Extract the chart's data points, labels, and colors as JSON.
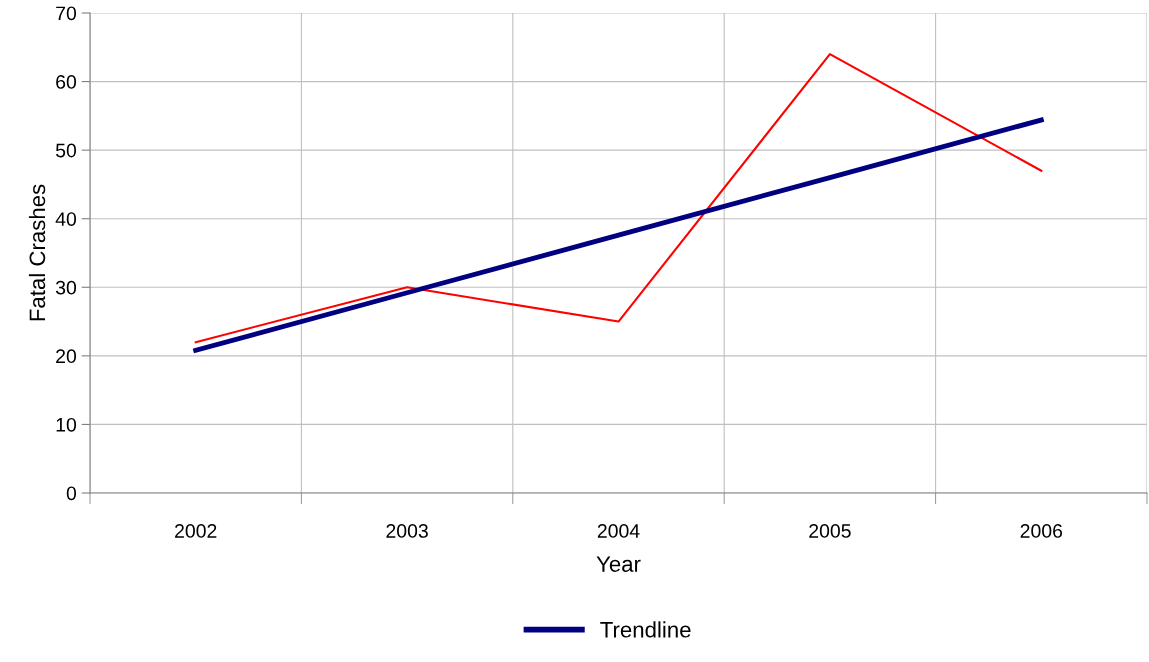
{
  "chart_data": {
    "type": "line",
    "xlabel": "Year",
    "ylabel": "Fatal Crashes",
    "categories": [
      "2002",
      "2003",
      "2004",
      "2005",
      "2006"
    ],
    "series": [
      {
        "color": "#ff0000",
        "values": [
          22,
          30,
          25,
          64,
          47
        ]
      },
      {
        "name": "Trendline",
        "color": "#000080",
        "values": [
          20.8,
          29.2,
          37.6,
          46.0,
          54.4
        ]
      }
    ],
    "ylim": [
      0,
      70
    ],
    "yticks": [
      0,
      10,
      20,
      30,
      40,
      50,
      60,
      70
    ],
    "grid": true,
    "legend": "bottom",
    "marker": "none"
  }
}
